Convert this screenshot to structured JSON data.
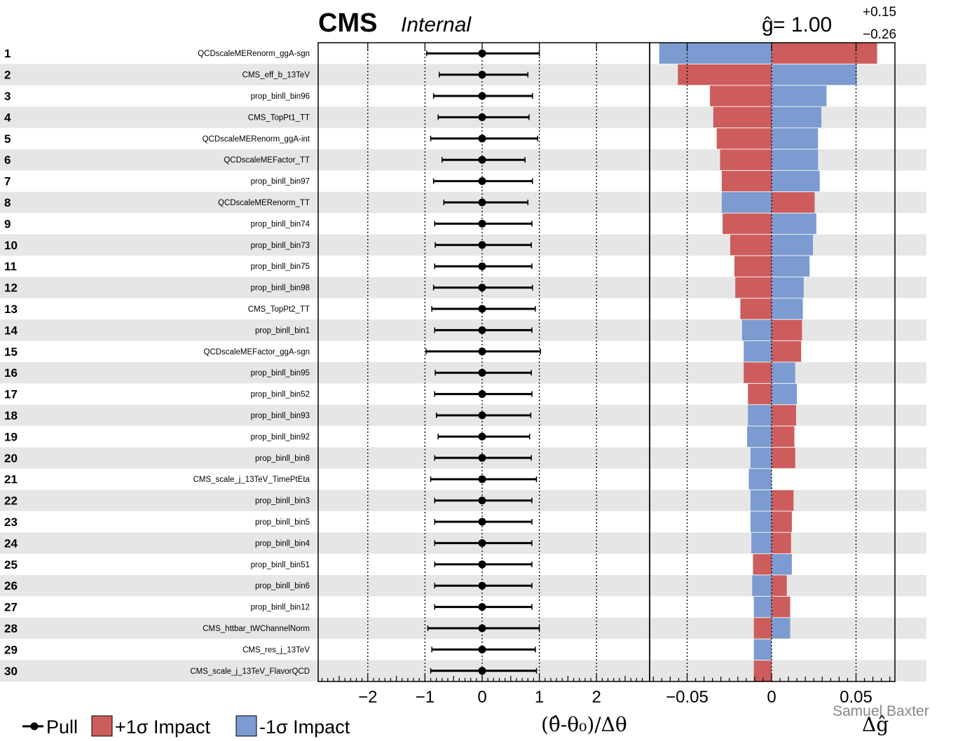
{
  "header": {
    "experiment": "CMS",
    "status": "Internal",
    "best_fit_symbol": "ĝ",
    "best_fit_eq": " = 1.00",
    "best_fit_up": "+0.15",
    "best_fit_down": "−0.26"
  },
  "legend": {
    "pull": "Pull",
    "plus_impact": "+1σ Impact",
    "minus_impact": "-1σ Impact"
  },
  "credit": "Samuel Baxter",
  "colors": {
    "plus_impact": "#cd5c5c",
    "minus_impact": "#7b9bd1",
    "stripe": "#e6e6e6",
    "marker": "#000000"
  },
  "chart_data": [
    {
      "type": "scatter",
      "name": "pulls",
      "xlabel": "(θ̂-θ₀)/Δθ",
      "xlim": [
        -2.9,
        2.9
      ],
      "x_ticks": [
        -2,
        -1,
        0,
        1,
        2
      ],
      "x_tick_labels": [
        "−2",
        "−1",
        "0",
        "1",
        "2"
      ],
      "dotted_lines_at": [
        -2,
        -1,
        1,
        2
      ],
      "ranks": [
        "1",
        "2",
        "3",
        "4",
        "5",
        "6",
        "7",
        "8",
        "9",
        "10",
        "11",
        "12",
        "13",
        "14",
        "15",
        "16",
        "17",
        "18",
        "19",
        "20",
        "21",
        "22",
        "23",
        "24",
        "25",
        "26",
        "27",
        "28",
        "29",
        "30"
      ],
      "parameters": [
        "QCDscaleMERenorm_ggA-sgn",
        "CMS_eff_b_13TeV",
        "prop_binll_bin96",
        "CMS_TopPt1_TT",
        "QCDscaleMERenorm_ggA-int",
        "QCDscaleMEFactor_TT",
        "prop_binll_bin97",
        "QCDscaleMERenorm_TT",
        "prop_binll_bin74",
        "prop_binll_bin73",
        "prop_binll_bin75",
        "prop_binll_bin98",
        "CMS_TopPt2_TT",
        "prop_binll_bin1",
        "QCDscaleMEFactor_ggA-sgn",
        "prop_binll_bin95",
        "prop_binll_bin52",
        "prop_binll_bin93",
        "prop_binll_bin92",
        "prop_binll_bin8",
        "CMS_scale_j_13TeV_TimePtEta",
        "prop_binll_bin3",
        "prop_binll_bin5",
        "prop_binll_bin4",
        "prop_binll_bin51",
        "prop_binll_bin6",
        "prop_binll_bin12",
        "CMS_httbar_tWChannelNorm",
        "CMS_res_j_13TeV",
        "CMS_scale_j_13TeV_FlavorQCD"
      ],
      "pull": [
        0,
        0,
        0,
        0,
        0,
        0,
        0,
        0,
        0,
        0,
        0,
        0,
        0,
        0,
        0,
        0,
        0,
        0,
        0,
        0,
        0,
        0,
        0,
        0,
        0,
        0,
        0,
        0,
        0,
        0
      ],
      "err_lo": [
        0.97,
        0.75,
        0.85,
        0.77,
        0.9,
        0.7,
        0.85,
        0.67,
        0.83,
        0.82,
        0.83,
        0.85,
        0.88,
        0.83,
        0.98,
        0.82,
        0.83,
        0.8,
        0.77,
        0.83,
        0.9,
        0.83,
        0.83,
        0.83,
        0.83,
        0.83,
        0.83,
        0.95,
        0.88,
        0.9
      ],
      "err_hi": [
        1.0,
        0.8,
        0.88,
        0.82,
        0.97,
        0.75,
        0.88,
        0.8,
        0.87,
        0.86,
        0.87,
        0.88,
        0.93,
        0.87,
        1.02,
        0.86,
        0.87,
        0.85,
        0.83,
        0.86,
        0.95,
        0.87,
        0.87,
        0.87,
        0.87,
        0.87,
        0.87,
        1.0,
        0.93,
        0.95
      ]
    },
    {
      "type": "bar",
      "name": "impacts",
      "xlabel": "Δĝ",
      "xlim": [
        -0.073,
        0.073
      ],
      "x_ticks": [
        -0.05,
        0,
        0.05
      ],
      "x_tick_labels": [
        "−0.05",
        "0",
        "0.05"
      ],
      "dotted_lines_at": [
        -0.05,
        0.05
      ],
      "series": [
        {
          "name": "+1σ Impact",
          "values": [
            0.0625,
            -0.0555,
            -0.0365,
            -0.0345,
            -0.0325,
            -0.0305,
            -0.0295,
            0.0255,
            -0.029,
            -0.0245,
            -0.022,
            -0.0215,
            -0.0185,
            0.018,
            0.0175,
            -0.0165,
            -0.014,
            0.0145,
            0.0135,
            0.014,
            0.0,
            0.013,
            0.012,
            0.0115,
            -0.011,
            0.009,
            0.011,
            -0.0105,
            0.0,
            -0.0105
          ]
        },
        {
          "name": "-1σ Impact",
          "values": [
            -0.0665,
            0.0505,
            0.0325,
            0.0295,
            0.0275,
            0.0275,
            0.0285,
            -0.0295,
            0.0265,
            0.0245,
            0.0225,
            0.019,
            0.0185,
            -0.0175,
            -0.0165,
            0.014,
            0.015,
            -0.014,
            -0.0145,
            -0.0125,
            -0.0135,
            -0.0125,
            -0.0125,
            -0.012,
            0.012,
            -0.0115,
            -0.0105,
            0.011,
            -0.0105,
            0.0
          ]
        }
      ]
    }
  ]
}
